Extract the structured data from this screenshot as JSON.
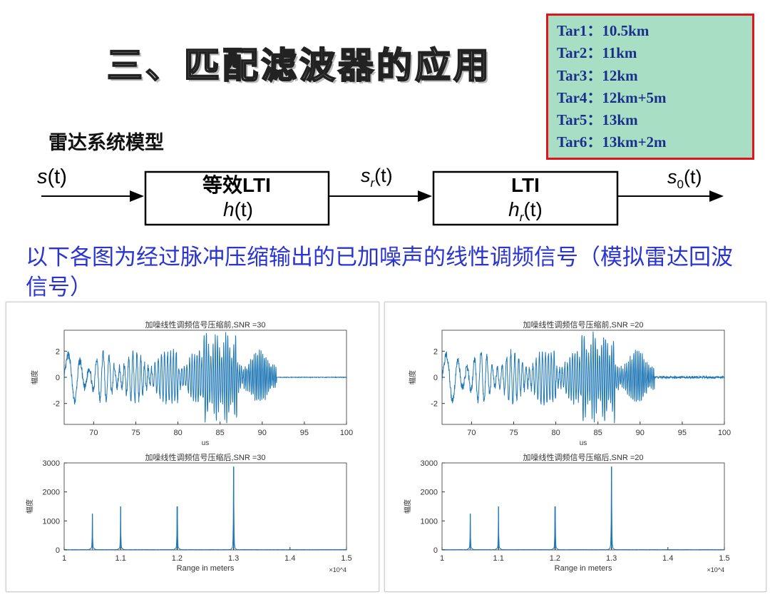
{
  "slide": {
    "title": "三、匹配滤波器的应用",
    "subtitle": "雷达系统模型",
    "description": "以下各图为经过脉冲压缩输出的已加噪声的线性调频信号（模拟雷达回波信号）"
  },
  "targets": [
    {
      "label": "Tar1",
      "value": "10.5km"
    },
    {
      "label": "Tar2",
      "value": "11km"
    },
    {
      "label": "Tar3",
      "value": "12km"
    },
    {
      "label": "Tar4",
      "value": "12km+5m"
    },
    {
      "label": "Tar5",
      "value": "13km"
    },
    {
      "label": "Tar6",
      "value": "13km+2m"
    }
  ],
  "target_separator": "：",
  "colors": {
    "target_box_bg": "#a8dfc4",
    "target_box_border": "#e0141b",
    "target_text": "#1a2f8c",
    "description_text": "#2a34d3",
    "signal_line": "#1f77b4"
  },
  "block_diagram": {
    "input": {
      "sym": "s",
      "sub": "",
      "arg": "(t)"
    },
    "block1": {
      "line1": "等效LTI",
      "line2_sym": "h",
      "line2_sub": "",
      "line2_arg": "(t)"
    },
    "mid": {
      "sym": "s",
      "sub": "r",
      "arg": "(t)"
    },
    "block2": {
      "line1": "LTI",
      "line2_sym": "h",
      "line2_sub": "r",
      "line2_arg": "(t)"
    },
    "output": {
      "sym": "s",
      "sub": "0",
      "arg": "(t)"
    }
  },
  "chart_data": [
    {
      "type": "line",
      "title": "加噪线性调频信号压缩前,SNR =30",
      "xlabel": "us",
      "ylabel": "幅度",
      "xlim": [
        66.5,
        100
      ],
      "ylim": [
        -3.6,
        3.6
      ],
      "xticks": [
        70,
        75,
        80,
        85,
        90,
        95,
        100
      ],
      "yticks": [
        -2,
        0,
        2
      ],
      "series": [
        {
          "description": "LFM echo waveform (noise SNR 30 dB)",
          "signal_end": 91.7,
          "noise_amplitude": 0.02
        }
      ]
    },
    {
      "type": "line",
      "title": "加噪线性调频信号压缩后,SNR =30",
      "xlabel": "Range in meters",
      "ylabel": "幅度",
      "xlim": [
        10000,
        15000
      ],
      "ylim": [
        0,
        3000
      ],
      "xticks": [
        1,
        1.1,
        1.2,
        1.3,
        1.4,
        1.5
      ],
      "x_multiplier": "×10^4",
      "yticks": [
        0,
        1000,
        2000,
        3000
      ],
      "peaks": [
        {
          "x": 10500,
          "y": 1250
        },
        {
          "x": 11000,
          "y": 1500
        },
        {
          "x": 12000,
          "y": 1500
        },
        {
          "x": 12005,
          "y": 1500
        },
        {
          "x": 13000,
          "y": 2870
        },
        {
          "x": 13002,
          "y": 2870
        }
      ]
    },
    {
      "type": "line",
      "title": "加噪线性调频信号压缩前,SNR =20",
      "xlabel": "us",
      "ylabel": "幅度",
      "xlim": [
        66.5,
        100
      ],
      "ylim": [
        -3.6,
        3.6
      ],
      "xticks": [
        70,
        75,
        80,
        85,
        90,
        95,
        100
      ],
      "yticks": [
        -2,
        0,
        2
      ],
      "series": [
        {
          "description": "LFM echo waveform (noise SNR 20 dB)",
          "signal_end": 91.7,
          "noise_amplitude": 0.08
        }
      ]
    },
    {
      "type": "line",
      "title": "加噪线性调频信号压缩后,SNR =20",
      "xlabel": "Range in meters",
      "ylabel": "幅度",
      "xlim": [
        10000,
        15000
      ],
      "ylim": [
        0,
        3000
      ],
      "xticks": [
        1,
        1.1,
        1.2,
        1.3,
        1.4,
        1.5
      ],
      "x_multiplier": "×10^4",
      "yticks": [
        0,
        1000,
        2000,
        3000
      ],
      "peaks": [
        {
          "x": 10500,
          "y": 1250
        },
        {
          "x": 11000,
          "y": 1500
        },
        {
          "x": 12000,
          "y": 1500
        },
        {
          "x": 12005,
          "y": 1500
        },
        {
          "x": 13000,
          "y": 2870
        },
        {
          "x": 13002,
          "y": 2870
        }
      ]
    }
  ]
}
